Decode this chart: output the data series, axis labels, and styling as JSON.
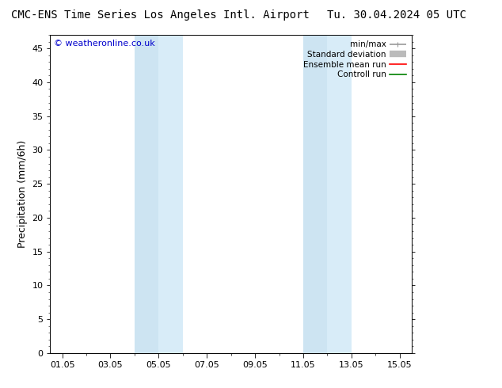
{
  "title_left": "CMC-ENS Time Series Los Angeles Intl. Airport",
  "title_right": "Tu. 30.04.2024 05 UTC",
  "ylabel": "Precipitation (mm/6h)",
  "copyright": "© weatheronline.co.uk",
  "copyright_color": "#0000cc",
  "ylim": [
    0,
    47
  ],
  "yticks": [
    0,
    5,
    10,
    15,
    20,
    25,
    30,
    35,
    40,
    45
  ],
  "xlim": [
    0.5,
    15.5
  ],
  "xtick_positions": [
    1,
    3,
    5,
    7,
    9,
    11,
    13,
    15
  ],
  "xtick_labels": [
    "01.05",
    "03.05",
    "05.05",
    "07.05",
    "09.05",
    "11.05",
    "13.05",
    "15.05"
  ],
  "shade_bands": [
    {
      "start": 4.0,
      "end": 5.5
    },
    {
      "start": 5.5,
      "end": 6.5
    },
    {
      "start": 11.0,
      "end": 12.0
    },
    {
      "start": 12.0,
      "end": 13.5
    }
  ],
  "shade_color_1": "#cce0f0",
  "shade_color_2": "#ddeef8",
  "shade_alpha": 1.0,
  "background_color": "#ffffff",
  "legend_items": [
    {
      "label": "min/max",
      "color": "#999999",
      "lw": 1.2
    },
    {
      "label": "Standard deviation",
      "color": "#bbbbbb",
      "lw": 6
    },
    {
      "label": "Ensemble mean run",
      "color": "#ff0000",
      "lw": 1.2
    },
    {
      "label": "Controll run",
      "color": "#008000",
      "lw": 1.2
    }
  ],
  "title_fontsize": 10,
  "legend_fontsize": 7.5,
  "ylabel_fontsize": 9,
  "tick_fontsize": 8,
  "copyright_fontsize": 8,
  "fig_width": 6.34,
  "fig_height": 4.9,
  "dpi": 100
}
